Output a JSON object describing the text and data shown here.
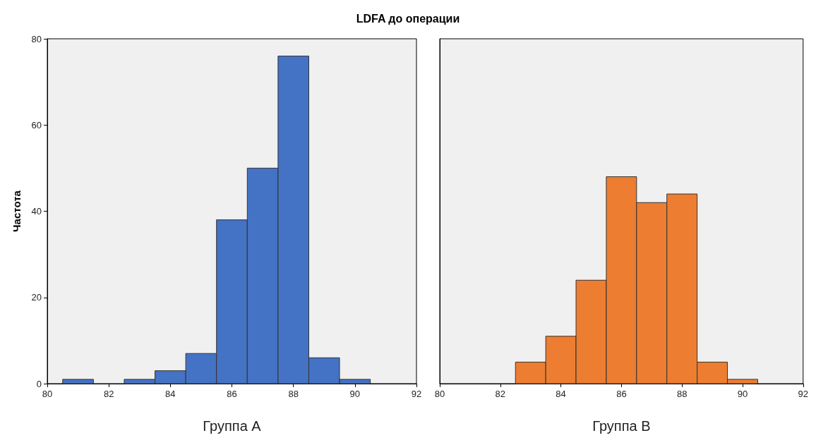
{
  "chart_data": [
    {
      "type": "histogram",
      "title": "LDFA до операции",
      "xlabel": "Группа А",
      "ylabel": "Частота",
      "color": "#4472c4",
      "bins": [
        80.5,
        81.5,
        82.5,
        83.5,
        84.5,
        85.5,
        86.5,
        87.5,
        88.5,
        89.5,
        90.5
      ],
      "values": [
        1,
        0,
        1,
        3,
        7,
        38,
        50,
        76,
        6,
        1
      ],
      "xlim": [
        80,
        92
      ],
      "xticks": [
        80,
        82,
        84,
        86,
        88,
        90,
        92
      ],
      "ylim": [
        0,
        80
      ],
      "yticks": [
        0,
        20,
        40,
        60,
        80
      ]
    },
    {
      "type": "histogram",
      "xlabel": "Группа В",
      "color": "#ed7d31",
      "bins": [
        82.5,
        83.5,
        84.5,
        85.5,
        86.5,
        87.5,
        88.5,
        89.5,
        90.5
      ],
      "values": [
        5,
        11,
        24,
        48,
        42,
        44,
        5,
        1
      ],
      "xlim": [
        80,
        92
      ],
      "xticks": [
        80,
        82,
        84,
        86,
        88,
        90,
        92
      ],
      "ylim": [
        0,
        80
      ],
      "yticks": [
        0,
        20,
        40,
        60,
        80
      ],
      "tick_labels": "x"
    }
  ]
}
